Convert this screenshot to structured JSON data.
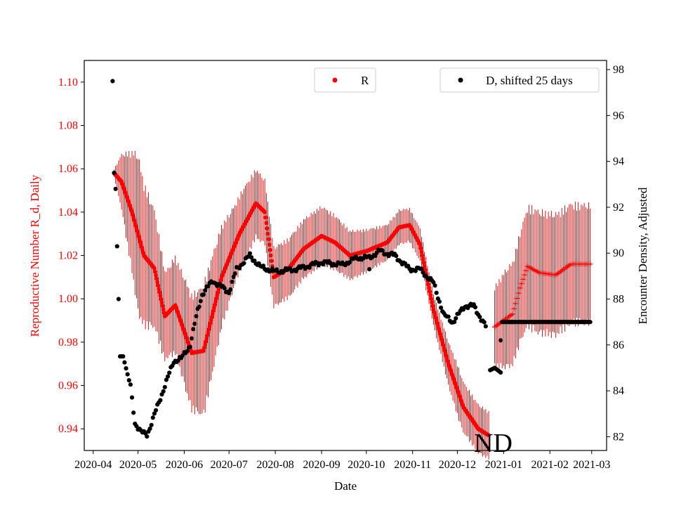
{
  "chart_data": {
    "type": "scatter",
    "xlabel": "Date",
    "ylabel_left": "Reproductive Number R_d, Daily",
    "ylabel_right": "Encounter Density, Adjusted",
    "ylim_left": [
      0.93,
      1.11
    ],
    "ylim_right": [
      81.4,
      98.4
    ],
    "x_range": [
      "2020-03-26",
      "2021-03-11"
    ],
    "left_ticks": [
      "0.94",
      "0.96",
      "0.98",
      "1.00",
      "1.02",
      "1.04",
      "1.06",
      "1.08",
      "1.10"
    ],
    "right_ticks": [
      "82",
      "84",
      "86",
      "88",
      "90",
      "92",
      "94",
      "96",
      "98"
    ],
    "x_ticks": [
      {
        "date": "2020-04-01",
        "label": "2020-04"
      },
      {
        "date": "2020-05-01",
        "label": "2020-05"
      },
      {
        "date": "2020-06-01",
        "label": "2020-06"
      },
      {
        "date": "2020-07-01",
        "label": "2020-07"
      },
      {
        "date": "2020-08-01",
        "label": "2020-08"
      },
      {
        "date": "2020-09-01",
        "label": "2020-09"
      },
      {
        "date": "2020-10-01",
        "label": "2020-10"
      },
      {
        "date": "2020-11-01",
        "label": "2020-11"
      },
      {
        "date": "2020-12-01",
        "label": "2020-12"
      },
      {
        "date": "2021-01-01",
        "label": "2021-01"
      },
      {
        "date": "2021-02-01",
        "label": "2021-02"
      },
      {
        "date": "2021-03-01",
        "label": "2021-03"
      }
    ],
    "annotation": "ND",
    "annotation_date": "2020-12-25",
    "series": [
      {
        "name": "R",
        "color": "#ff0000",
        "axis": "left",
        "errorbar": true,
        "knots_dates": [
          "2020-04-15",
          "2020-04-20",
          "2020-04-27",
          "2020-05-05",
          "2020-05-12",
          "2020-05-19",
          "2020-05-26",
          "2020-06-06",
          "2020-06-14",
          "2020-06-26",
          "2020-07-08",
          "2020-07-19",
          "2020-07-25",
          "2020-07-31",
          "2020-08-10",
          "2020-08-20",
          "2020-09-01",
          "2020-09-10",
          "2020-09-20",
          "2020-10-01",
          "2020-10-15",
          "2020-10-23",
          "2020-10-30",
          "2020-11-06",
          "2020-11-15",
          "2020-11-25",
          "2020-12-05",
          "2020-12-15",
          "2020-12-22"
        ],
        "knots_values": [
          1.058,
          1.054,
          1.04,
          1.02,
          1.014,
          0.992,
          0.997,
          0.975,
          0.976,
          1.01,
          1.03,
          1.044,
          1.04,
          1.01,
          1.014,
          1.023,
          1.029,
          1.026,
          1.02,
          1.022,
          1.026,
          1.033,
          1.034,
          1.025,
          0.995,
          0.97,
          0.95,
          0.94,
          0.937
        ],
        "err_dates": [
          "2020-04-15",
          "2020-05-01",
          "2020-05-20",
          "2020-06-15",
          "2020-07-05",
          "2020-08-01",
          "2020-09-01",
          "2020-10-15",
          "2020-11-15",
          "2020-12-01",
          "2020-12-22"
        ],
        "err_values": [
          0.002,
          0.04,
          0.022,
          0.033,
          0.02,
          0.015,
          0.015,
          0.009,
          0.008,
          0.013,
          0.012
        ],
        "projection": {
          "marker": "plus",
          "knots_dates": [
            "2020-12-26",
            "2021-01-01",
            "2021-01-07",
            "2021-01-12",
            "2021-01-17",
            "2021-01-25",
            "2021-02-05",
            "2021-02-15",
            "2021-02-28"
          ],
          "knots_values": [
            0.987,
            0.99,
            0.993,
            1.005,
            1.015,
            1.012,
            1.011,
            1.016,
            1.016
          ],
          "err_dates": [
            "2020-12-26",
            "2021-01-01",
            "2021-01-12",
            "2021-01-20",
            "2021-02-01",
            "2021-02-28"
          ],
          "err_values": [
            0.02,
            0.024,
            0.028,
            0.031,
            0.031,
            0.03
          ]
        }
      },
      {
        "name": "D, shifted 25 days",
        "color": "#000000",
        "axis": "right",
        "knots_dates": [
          "2020-04-14",
          "2020-04-15",
          "2020-04-16",
          "2020-04-17",
          "2020-04-18",
          "2020-04-19",
          "2020-04-21",
          "2020-04-26",
          "2020-04-29",
          "2020-05-03",
          "2020-05-07",
          "2020-05-09",
          "2020-05-15",
          "2020-05-25",
          "2020-05-30",
          "2020-06-05",
          "2020-06-10",
          "2020-06-13",
          "2020-06-20",
          "2020-07-01",
          "2020-07-06",
          "2020-07-15",
          "2020-07-22",
          "2020-08-01",
          "2020-08-15",
          "2020-09-01",
          "2020-09-15",
          "2020-09-25",
          "2020-10-03",
          "2020-10-10",
          "2020-10-14",
          "2020-10-20",
          "2020-10-30",
          "2020-11-06",
          "2020-11-15",
          "2020-11-22",
          "2020-11-28",
          "2020-12-06",
          "2020-12-12",
          "2020-12-20"
        ],
        "knots_values": [
          97.5,
          93.5,
          92.8,
          90.3,
          88,
          85.5,
          85.5,
          84.2,
          82.6,
          82.2,
          82.1,
          82.4,
          83.5,
          85.3,
          85.4,
          86,
          87.5,
          88.2,
          88.8,
          88.3,
          89.3,
          89.9,
          89.4,
          89.2,
          89.3,
          89.6,
          89.5,
          89.8,
          89.8,
          90.1,
          90.0,
          89.9,
          89.3,
          89.3,
          88.7,
          87.3,
          87.0,
          87.7,
          87.7,
          86.8
        ],
        "gap_segment": {
          "knots_dates": [
            "2020-12-23",
            "2020-12-26",
            "2020-12-28",
            "2020-12-30"
          ],
          "knots_values": [
            84.9,
            85.0,
            84.9,
            84.8
          ]
        },
        "flat": {
          "from": "2020-12-31",
          "to": "2021-02-28",
          "value": 87.0
        },
        "pre_flat": {
          "date": "2020-12-30",
          "value": 86.2
        },
        "isolated": [
          {
            "date": "2020-10-03",
            "value": 89.3
          }
        ]
      }
    ]
  },
  "legend": {
    "r_label": "R",
    "d_label": "D, shifted 25 days"
  }
}
